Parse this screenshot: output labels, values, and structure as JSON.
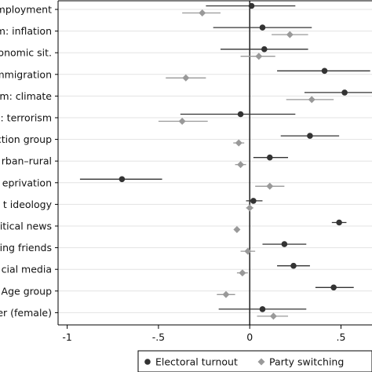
{
  "chart_data": {
    "type": "scatter",
    "subtype": "coefficient-plot-with-confidence-intervals",
    "orientation": "horizontal",
    "categories": [
      "mployment",
      "m: inflation",
      "onomic sit.",
      "mmigration",
      "m: climate",
      ": terrorism",
      "ction group",
      "rban–rural",
      "eprivation",
      "t ideology",
      "itical news",
      "ing friends",
      "cial media",
      "Age group",
      "er (female)"
    ],
    "series": [
      {
        "name": "Electoral turnout",
        "color": "#333333",
        "marker": "circle",
        "values": [
          0.01,
          0.07,
          0.08,
          0.41,
          0.52,
          -0.05,
          0.33,
          0.11,
          -0.7,
          0.02,
          0.49,
          0.19,
          0.24,
          0.46,
          0.07
        ],
        "ci_low": [
          -0.24,
          -0.2,
          -0.16,
          0.15,
          0.3,
          -0.38,
          0.17,
          0.02,
          -0.93,
          -0.02,
          0.45,
          0.07,
          0.15,
          0.36,
          -0.17
        ],
        "ci_high": [
          0.25,
          0.34,
          0.32,
          0.66,
          0.74,
          0.25,
          0.49,
          0.21,
          -0.48,
          0.07,
          0.53,
          0.31,
          0.33,
          0.57,
          0.31
        ]
      },
      {
        "name": "Party switching",
        "color": "#999999",
        "marker": "diamond",
        "values": [
          -0.26,
          0.22,
          0.05,
          -0.35,
          0.34,
          -0.37,
          -0.06,
          -0.05,
          0.11,
          0.0,
          -0.07,
          -0.01,
          -0.04,
          -0.13,
          0.13
        ],
        "ci_low": [
          -0.37,
          0.12,
          -0.05,
          -0.46,
          0.2,
          -0.5,
          -0.09,
          -0.08,
          0.03,
          -0.02,
          -0.08,
          -0.05,
          -0.07,
          -0.18,
          0.04
        ],
        "ci_high": [
          -0.16,
          0.32,
          0.14,
          -0.24,
          0.46,
          -0.23,
          -0.03,
          -0.02,
          0.19,
          0.02,
          -0.06,
          0.03,
          -0.01,
          -0.08,
          0.21
        ]
      }
    ],
    "xlim": [
      -1.05,
      0.67
    ],
    "xticks": [
      -1,
      -0.5,
      0,
      0.5
    ],
    "xtick_labels": [
      "-1",
      "-.5",
      "0",
      ".5"
    ],
    "reference_line": 0,
    "grid": "horizontal",
    "legend_position": "bottom"
  }
}
